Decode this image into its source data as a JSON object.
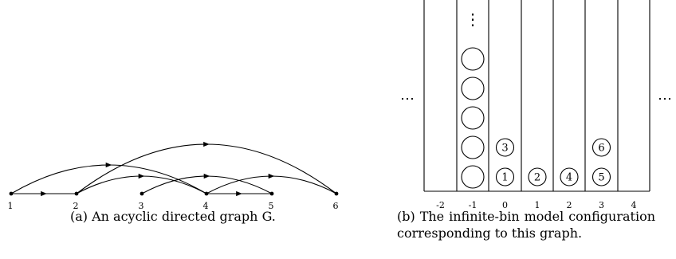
{
  "graph": {
    "nodes": [
      "1",
      "2",
      "3",
      "4",
      "5",
      "6"
    ],
    "edges": [
      {
        "from": "1",
        "to": "2"
      },
      {
        "from": "1",
        "to": "4"
      },
      {
        "from": "2",
        "to": "4"
      },
      {
        "from": "2",
        "to": "6"
      },
      {
        "from": "3",
        "to": "5"
      },
      {
        "from": "4",
        "to": "5"
      },
      {
        "from": "4",
        "to": "6"
      }
    ]
  },
  "bins": {
    "labels": [
      "-2",
      "-1",
      "0",
      "1",
      "2",
      "3",
      "4"
    ],
    "ellipsis_left": "⋯",
    "ellipsis_right": "⋯",
    "vertical_dots": "⋮",
    "columns": [
      {
        "bin": "-2",
        "balls": []
      },
      {
        "bin": "-1",
        "balls": [
          "",
          "",
          "",
          "",
          ""
        ]
      },
      {
        "bin": "0",
        "balls": [
          "1",
          "3"
        ]
      },
      {
        "bin": "1",
        "balls": [
          "2"
        ]
      },
      {
        "bin": "2",
        "balls": [
          "4"
        ]
      },
      {
        "bin": "3",
        "balls": [
          "5",
          "6"
        ]
      },
      {
        "bin": "4",
        "balls": []
      }
    ]
  },
  "captions": {
    "a": "(a) An acyclic directed graph G.",
    "b": "(b) The infinite-bin model configuration corresponding to this graph."
  }
}
